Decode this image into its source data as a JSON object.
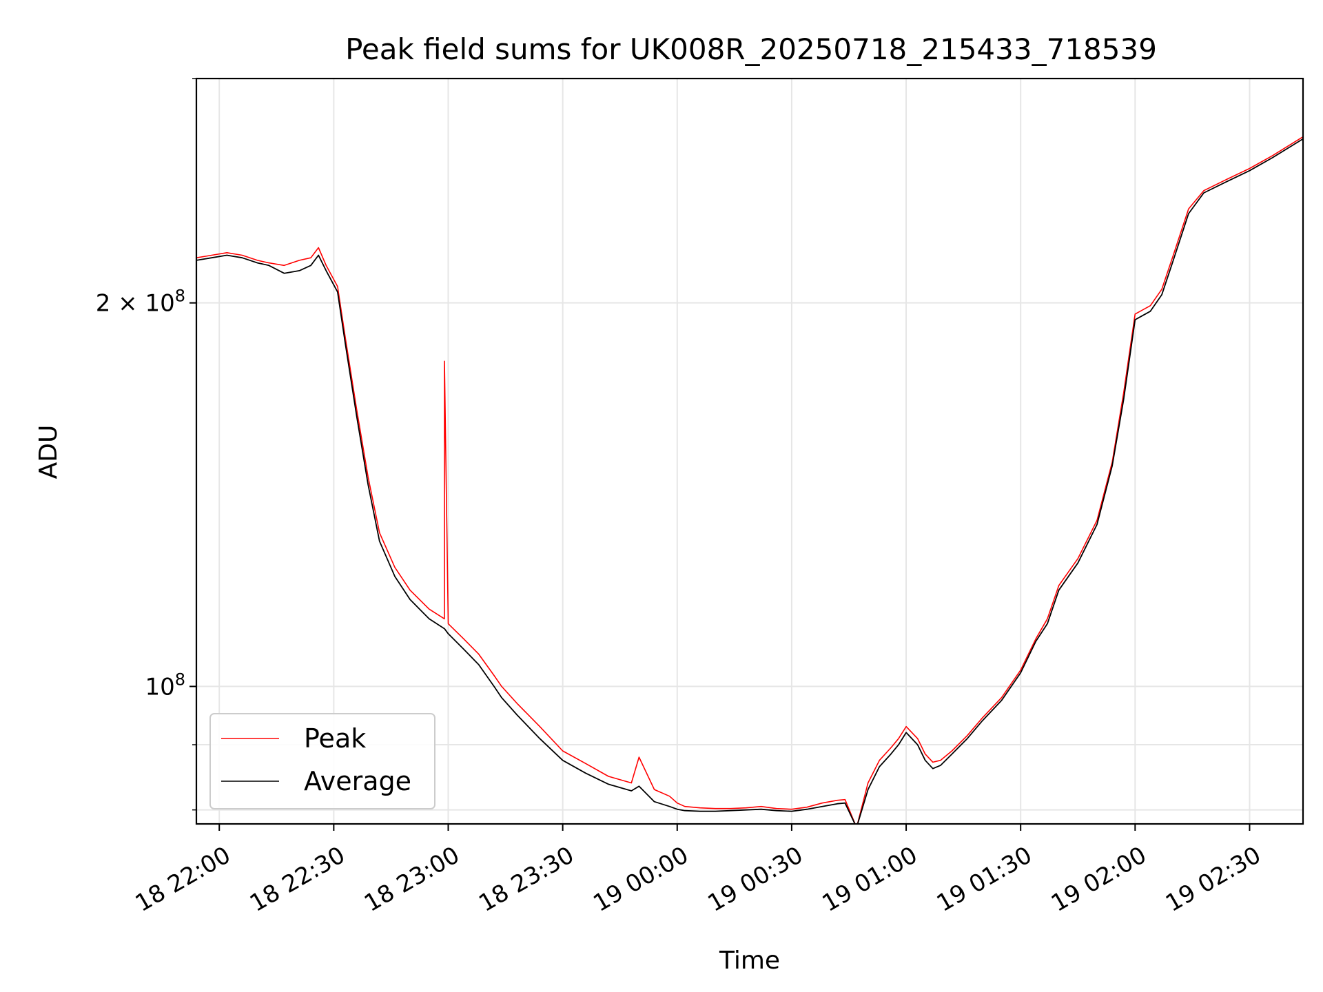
{
  "chart_data": {
    "type": "line",
    "title": "Peak field sums for UK008R_20250718_215433_718539",
    "xlabel": "Time",
    "ylabel": "ADU",
    "yscale": "log",
    "grid": true,
    "legend_placement": "lower-left",
    "xlim": [
      "2025-07-18 21:54",
      "2025-07-19 02:44"
    ],
    "ylim": [
      78000000,
      300000000
    ],
    "x_ticks": [
      "18 22:00",
      "18 22:30",
      "18 23:00",
      "18 23:30",
      "19 00:00",
      "19 00:30",
      "19 01:00",
      "19 01:30",
      "19 02:00",
      "19 02:30"
    ],
    "x_tick_times": [
      "2025-07-18 22:00",
      "2025-07-18 22:30",
      "2025-07-18 23:00",
      "2025-07-18 23:30",
      "2025-07-19 00:00",
      "2025-07-19 00:30",
      "2025-07-19 01:00",
      "2025-07-19 01:30",
      "2025-07-19 02:00",
      "2025-07-19 02:30"
    ],
    "y_ticks": [
      {
        "value": 100000000,
        "base": "10",
        "exp": "8",
        "coef": ""
      },
      {
        "value": 200000000,
        "base": "10",
        "exp": "8",
        "coef": "2 × "
      }
    ],
    "y_minor_ticks": [
      80000000,
      90000000,
      300000000
    ],
    "series": [
      {
        "name": "Peak",
        "color": "#ff0000",
        "x": [
          "2025-07-18 21:54",
          "2025-07-18 21:58",
          "2025-07-18 22:02",
          "2025-07-18 22:06",
          "2025-07-18 22:10",
          "2025-07-18 22:13",
          "2025-07-18 22:17",
          "2025-07-18 22:21",
          "2025-07-18 22:24",
          "2025-07-18 22:26",
          "2025-07-18 22:28",
          "2025-07-18 22:31",
          "2025-07-18 22:33",
          "2025-07-18 22:36",
          "2025-07-18 22:39",
          "2025-07-18 22:42",
          "2025-07-18 22:46",
          "2025-07-18 22:50",
          "2025-07-18 22:55",
          "2025-07-18 22:59",
          "2025-07-18 22:59",
          "2025-07-18 23:00",
          "2025-07-18 23:04",
          "2025-07-18 23:08",
          "2025-07-18 23:12",
          "2025-07-18 23:14",
          "2025-07-18 23:18",
          "2025-07-18 23:24",
          "2025-07-18 23:30",
          "2025-07-18 23:36",
          "2025-07-18 23:42",
          "2025-07-18 23:48",
          "2025-07-18 23:50",
          "2025-07-18 23:54",
          "2025-07-18 23:58",
          "2025-07-19 00:00",
          "2025-07-19 00:02",
          "2025-07-19 00:06",
          "2025-07-19 00:10",
          "2025-07-19 00:14",
          "2025-07-19 00:18",
          "2025-07-19 00:22",
          "2025-07-19 00:26",
          "2025-07-19 00:30",
          "2025-07-19 00:34",
          "2025-07-19 00:38",
          "2025-07-19 00:40",
          "2025-07-19 00:42",
          "2025-07-19 00:44",
          "2025-07-19 00:47",
          "2025-07-19 00:50",
          "2025-07-19 00:53",
          "2025-07-19 00:56",
          "2025-07-19 00:58",
          "2025-07-19 01:00",
          "2025-07-19 01:03",
          "2025-07-19 01:05",
          "2025-07-19 01:07",
          "2025-07-19 01:09",
          "2025-07-19 01:12",
          "2025-07-19 01:16",
          "2025-07-19 01:20",
          "2025-07-19 01:25",
          "2025-07-19 01:30",
          "2025-07-19 01:34",
          "2025-07-19 01:37",
          "2025-07-19 01:40",
          "2025-07-19 01:45",
          "2025-07-19 01:50",
          "2025-07-19 01:54",
          "2025-07-19 01:57",
          "2025-07-19 02:00",
          "2025-07-19 02:04",
          "2025-07-19 02:07",
          "2025-07-19 02:10",
          "2025-07-19 02:14",
          "2025-07-19 02:18",
          "2025-07-19 02:24",
          "2025-07-19 02:30",
          "2025-07-19 02:36",
          "2025-07-19 02:44"
        ],
        "y": [
          217000000,
          218000000,
          219000000,
          218000000,
          216000000,
          215000000,
          214000000,
          216000000,
          217000000,
          221000000,
          214000000,
          206000000,
          188000000,
          165000000,
          146000000,
          132000000,
          124000000,
          119000000,
          115000000,
          113000000,
          180000000,
          112000000,
          109000000,
          106000000,
          102000000,
          100000000,
          97000000,
          93000000,
          89000000,
          87000000,
          85000000,
          84000000,
          88000000,
          83000000,
          82000000,
          81000000,
          80500000,
          80300000,
          80200000,
          80200000,
          80300000,
          80500000,
          80200000,
          80100000,
          80400000,
          81000000,
          81200000,
          81400000,
          81500000,
          77500000,
          84000000,
          87500000,
          89500000,
          91000000,
          93000000,
          91000000,
          88500000,
          87200000,
          87500000,
          89000000,
          91500000,
          94500000,
          98000000,
          103000000,
          109000000,
          113000000,
          120000000,
          126000000,
          135000000,
          150000000,
          170000000,
          196000000,
          199000000,
          205000000,
          218000000,
          237000000,
          245000000,
          250000000,
          255000000,
          261000000,
          270000000
        ]
      },
      {
        "name": "Average",
        "color": "#000000",
        "x": [
          "2025-07-18 21:54",
          "2025-07-18 21:58",
          "2025-07-18 22:02",
          "2025-07-18 22:06",
          "2025-07-18 22:10",
          "2025-07-18 22:13",
          "2025-07-18 22:17",
          "2025-07-18 22:21",
          "2025-07-18 22:24",
          "2025-07-18 22:26",
          "2025-07-18 22:28",
          "2025-07-18 22:31",
          "2025-07-18 22:33",
          "2025-07-18 22:36",
          "2025-07-18 22:39",
          "2025-07-18 22:42",
          "2025-07-18 22:46",
          "2025-07-18 22:50",
          "2025-07-18 22:55",
          "2025-07-18 22:59",
          "2025-07-18 23:00",
          "2025-07-18 23:04",
          "2025-07-18 23:08",
          "2025-07-18 23:12",
          "2025-07-18 23:14",
          "2025-07-18 23:18",
          "2025-07-18 23:24",
          "2025-07-18 23:30",
          "2025-07-18 23:36",
          "2025-07-18 23:42",
          "2025-07-18 23:48",
          "2025-07-18 23:50",
          "2025-07-18 23:54",
          "2025-07-18 23:58",
          "2025-07-19 00:00",
          "2025-07-19 00:02",
          "2025-07-19 00:06",
          "2025-07-19 00:10",
          "2025-07-19 00:14",
          "2025-07-19 00:18",
          "2025-07-19 00:22",
          "2025-07-19 00:26",
          "2025-07-19 00:30",
          "2025-07-19 00:34",
          "2025-07-19 00:38",
          "2025-07-19 00:40",
          "2025-07-19 00:42",
          "2025-07-19 00:44",
          "2025-07-19 00:47",
          "2025-07-19 00:50",
          "2025-07-19 00:53",
          "2025-07-19 00:56",
          "2025-07-19 00:58",
          "2025-07-19 01:00",
          "2025-07-19 01:03",
          "2025-07-19 01:05",
          "2025-07-19 01:07",
          "2025-07-19 01:09",
          "2025-07-19 01:12",
          "2025-07-19 01:16",
          "2025-07-19 01:20",
          "2025-07-19 01:25",
          "2025-07-19 01:30",
          "2025-07-19 01:34",
          "2025-07-19 01:37",
          "2025-07-19 01:40",
          "2025-07-19 01:45",
          "2025-07-19 01:50",
          "2025-07-19 01:54",
          "2025-07-19 01:57",
          "2025-07-19 02:00",
          "2025-07-19 02:04",
          "2025-07-19 02:07",
          "2025-07-19 02:10",
          "2025-07-19 02:14",
          "2025-07-19 02:18",
          "2025-07-19 02:24",
          "2025-07-19 02:30",
          "2025-07-19 02:36",
          "2025-07-19 02:44"
        ],
        "y": [
          216000000,
          217000000,
          218000000,
          217000000,
          215000000,
          214000000,
          211000000,
          212000000,
          214000000,
          218000000,
          212000000,
          204000000,
          186000000,
          163000000,
          144000000,
          130000000,
          122000000,
          117000000,
          113000000,
          111000000,
          110000000,
          107000000,
          104000000,
          100000000,
          98000000,
          95000000,
          91000000,
          87500000,
          85500000,
          83800000,
          82800000,
          83500000,
          81200000,
          80500000,
          80100000,
          79900000,
          79800000,
          79800000,
          79900000,
          80000000,
          80100000,
          79900000,
          79800000,
          80100000,
          80500000,
          80700000,
          80900000,
          81000000,
          77500000,
          83000000,
          86500000,
          88500000,
          90000000,
          92000000,
          90000000,
          87500000,
          86200000,
          86700000,
          88500000,
          91000000,
          94000000,
          97500000,
          102500000,
          108500000,
          112000000,
          119000000,
          125000000,
          134000000,
          149000000,
          168000000,
          194000000,
          197000000,
          203000000,
          216000000,
          235000000,
          244000000,
          249000000,
          254000000,
          260000000,
          269000000
        ]
      }
    ],
    "legend": [
      {
        "label": "Peak",
        "color": "#ff0000"
      },
      {
        "label": "Average",
        "color": "#000000"
      }
    ]
  }
}
